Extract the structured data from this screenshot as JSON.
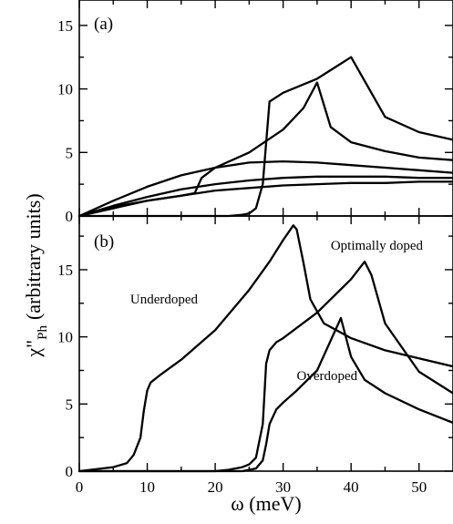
{
  "chart_data": [
    {
      "panel_label": "(a)",
      "type": "line",
      "xlim": [
        0,
        55
      ],
      "ylim": [
        0,
        17
      ],
      "x_ticks": [
        "0",
        "10",
        "20",
        "30",
        "40",
        "50"
      ],
      "y_ticks": [
        "0",
        "5",
        "10",
        "15"
      ],
      "series": [
        {
          "x": [
            0,
            5,
            10,
            15,
            20,
            22,
            24,
            25,
            26,
            27,
            28,
            30,
            35,
            40,
            45,
            50,
            55
          ],
          "y": [
            0,
            0,
            0,
            0,
            0,
            0,
            0.1,
            0.2,
            0.6,
            2.5,
            9.0,
            9.7,
            10.8,
            12.5,
            7.8,
            6.6,
            6.0
          ]
        },
        {
          "x": [
            0,
            5,
            10,
            15,
            17,
            18,
            20,
            25,
            30,
            33,
            35,
            37,
            40,
            45,
            50,
            55
          ],
          "y": [
            0,
            0.7,
            1.2,
            1.6,
            1.8,
            3.0,
            3.8,
            5.0,
            6.8,
            8.5,
            10.5,
            7.0,
            5.8,
            5.1,
            4.6,
            4.4
          ]
        },
        {
          "x": [
            0,
            5,
            10,
            15,
            20,
            25,
            30,
            35,
            40,
            45,
            50,
            55
          ],
          "y": [
            0,
            1.2,
            2.3,
            3.2,
            3.8,
            4.2,
            4.3,
            4.2,
            4.0,
            3.8,
            3.6,
            3.4
          ]
        },
        {
          "x": [
            0,
            5,
            10,
            15,
            20,
            25,
            30,
            35,
            40,
            45,
            50,
            55
          ],
          "y": [
            0,
            0.8,
            1.5,
            2.1,
            2.5,
            2.8,
            3.0,
            3.1,
            3.1,
            3.1,
            3.0,
            3.0
          ]
        },
        {
          "x": [
            0,
            5,
            10,
            15,
            20,
            25,
            30,
            35,
            40,
            45,
            50,
            55
          ],
          "y": [
            0,
            0.6,
            1.2,
            1.6,
            2.0,
            2.2,
            2.4,
            2.5,
            2.6,
            2.6,
            2.7,
            2.7
          ]
        }
      ]
    },
    {
      "panel_label": "(b)",
      "type": "line",
      "xlim": [
        0,
        55
      ],
      "ylim": [
        0,
        19
      ],
      "x_ticks": [
        "0",
        "10",
        "20",
        "30",
        "40",
        "50"
      ],
      "y_ticks": [
        "0",
        "5",
        "10",
        "15"
      ],
      "annotations": [
        {
          "text": "Underdoped",
          "x": 7.5,
          "y": 12.5
        },
        {
          "text": "Optimally doped",
          "x": 37,
          "y": 16.5
        },
        {
          "text": "Overdoped",
          "x": 32,
          "y": 6.8
        }
      ],
      "series": [
        {
          "x": [
            0,
            5,
            7,
            8,
            9,
            9.5,
            10,
            10.5,
            11,
            12,
            15,
            20,
            25,
            28,
            30,
            31.5,
            32,
            33,
            34,
            36,
            40,
            45,
            50,
            55
          ],
          "y": [
            0,
            0.3,
            0.6,
            1.2,
            2.5,
            4.5,
            6.0,
            6.6,
            6.8,
            7.2,
            8.3,
            10.5,
            13.5,
            15.6,
            17.2,
            18.3,
            18.0,
            15.5,
            12.8,
            11.0,
            9.9,
            9.0,
            8.4,
            7.8
          ]
        },
        {
          "x": [
            0,
            20,
            22,
            24,
            25,
            26,
            27,
            27.5,
            28,
            29,
            30,
            35,
            40,
            42,
            43,
            45,
            50,
            55
          ],
          "y": [
            0,
            0,
            0.1,
            0.3,
            0.5,
            1.0,
            3.5,
            8.0,
            9.0,
            9.6,
            9.9,
            11.8,
            14.3,
            15.6,
            14.6,
            11.0,
            7.4,
            5.8
          ]
        },
        {
          "x": [
            0,
            20,
            24,
            26,
            27,
            27.5,
            28,
            29,
            30,
            32,
            35,
            38.5,
            40,
            42,
            45,
            50,
            55
          ],
          "y": [
            0,
            0,
            0,
            0.2,
            0.8,
            2.0,
            3.5,
            4.6,
            5.1,
            6.0,
            7.5,
            11.4,
            8.5,
            6.8,
            5.8,
            4.6,
            3.6
          ]
        }
      ]
    }
  ],
  "xlabel": "ω (meV)",
  "ylabel": "χ\"Ph (arbitrary units)",
  "ylabel_main": "χ\"",
  "ylabel_sub": "Ph",
  "ylabel_rest": "(arbitrary units)"
}
